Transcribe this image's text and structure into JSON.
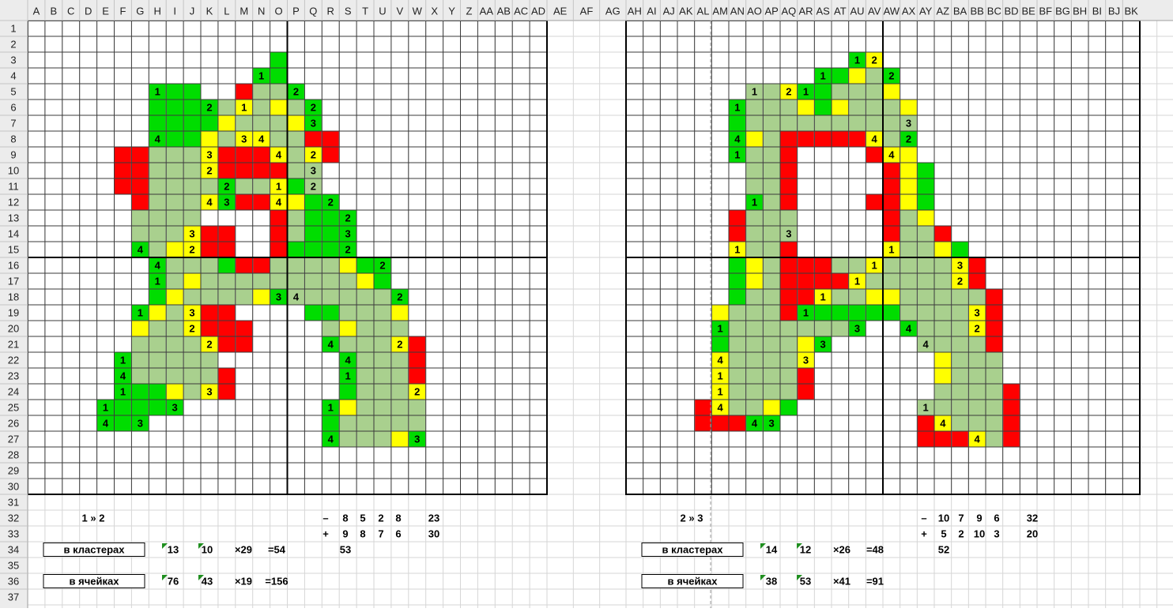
{
  "columns": [
    "A",
    "B",
    "C",
    "D",
    "E",
    "F",
    "G",
    "H",
    "I",
    "J",
    "K",
    "L",
    "M",
    "N",
    "O",
    "P",
    "Q",
    "R",
    "S",
    "T",
    "U",
    "V",
    "W",
    "X",
    "Y",
    "Z",
    "AA",
    "AB",
    "AC",
    "AD",
    "AE",
    "AF",
    "AG",
    "AH",
    "AI",
    "AJ",
    "AK",
    "AL",
    "AM",
    "AN",
    "AO",
    "AP",
    "AQ",
    "AR",
    "AS",
    "AT",
    "AU",
    "AV",
    "AW",
    "AX",
    "AY",
    "AZ",
    "BA",
    "BB",
    "BC",
    "BD",
    "BE",
    "BF",
    "BG",
    "BH",
    "BI",
    "BJ",
    "BK"
  ],
  "rows": [
    1,
    2,
    3,
    4,
    5,
    6,
    7,
    8,
    9,
    10,
    11,
    12,
    13,
    14,
    15,
    16,
    17,
    18,
    19,
    20,
    21,
    22,
    23,
    24,
    25,
    26,
    27,
    28,
    29,
    30,
    31,
    32,
    33,
    34,
    35,
    36,
    37
  ],
  "figures": [
    {
      "cells": {
        "4": {
          "N": 1
        },
        "5": {
          "H": 1,
          "P": 2
        },
        "6": {
          "K": 2,
          "M": 1,
          "Q": 2
        },
        "7": {
          "Q": 3
        },
        "8": {
          "H": 4,
          "M": 3,
          "N": 4
        },
        "9": {
          "K": 3,
          "O": 4,
          "Q": 2
        },
        "10": {
          "K": 2,
          "Q": 3
        },
        "11": {
          "L": 2,
          "O": 1,
          "Q": 2
        },
        "12": {
          "K": 4,
          "L": 3,
          "O": 4,
          "R": 2
        },
        "13": {
          "S": 2
        },
        "14": {
          "J": 3,
          "S": 3
        },
        "15": {
          "G": 4,
          "J": 2,
          "S": 2
        },
        "16": {
          "H": 4,
          "U": 2
        },
        "17": {
          "H": 1
        },
        "18": {
          "O": 3,
          "P": 4,
          "V": 2
        },
        "19": {
          "G": 1,
          "J": 3
        },
        "20": {
          "J": 2
        },
        "21": {
          "K": 2,
          "R": 4,
          "V": 2
        },
        "22": {
          "F": 1,
          "S": 4
        },
        "23": {
          "F": 4,
          "S": 1
        },
        "24": {
          "F": 1,
          "K": 3,
          "W": 2
        },
        "25": {
          "E": 1,
          "I": 3,
          "R": 1
        },
        "26": {
          "E": 4,
          "G": 3
        },
        "27": {
          "R": 4,
          "W": 3
        }
      }
    },
    {
      "cells": {
        "3": {
          "AU": 1,
          "AV": 2
        },
        "4": {
          "AS": 1,
          "AW": 2
        },
        "5": {
          "AO": 1,
          "AQ": 2,
          "AR": 1
        },
        "6": {
          "AN": 1
        },
        "7": {
          "AX": 3
        },
        "8": {
          "AN": 4,
          "AV": 4,
          "AX": 2
        },
        "9": {
          "AN": 1,
          "AW": 4
        },
        "12": {
          "AO": 1
        },
        "14": {
          "AQ": 3
        },
        "15": {
          "AN": 1,
          "AW": 1
        },
        "16": {
          "AV": 1,
          "BA": 3
        },
        "17": {
          "AU": 1,
          "BA": 2
        },
        "18": {
          "AS": 1
        },
        "19": {
          "AR": 1,
          "BB": 3
        },
        "20": {
          "AM": 1,
          "AU": 3,
          "AX": 4,
          "BB": 2
        },
        "21": {
          "AS": 3,
          "AY": 4
        },
        "22": {
          "AM": 4,
          "AR": 3
        },
        "23": {
          "AM": 1
        },
        "24": {
          "AM": 1
        },
        "25": {
          "AM": 4,
          "AY": 1
        },
        "26": {
          "AO": 4,
          "AP": 3,
          "AZ": 4
        },
        "27": {
          "BB": 4
        }
      }
    }
  ],
  "panels": [
    {
      "pair": "1 » 2",
      "minus_sign": "–",
      "minus": [
        8,
        5,
        2,
        8
      ],
      "minus_total": 23,
      "plus_sign": "+",
      "plus": [
        9,
        8,
        7,
        6
      ],
      "plus_total": 30,
      "rows": [
        {
          "label": "в кластерах",
          "a": 13,
          "b": 10,
          "c": "×29",
          "d": "=54",
          "extra": 53
        },
        {
          "label": "в ячейках",
          "a": 76,
          "b": 43,
          "c": "×19",
          "d": "=156"
        }
      ]
    },
    {
      "pair": "2 » 3",
      "minus_sign": "–",
      "minus": [
        10,
        7,
        9,
        6
      ],
      "minus_total": 32,
      "plus_sign": "+",
      "plus": [
        5,
        2,
        10,
        3
      ],
      "plus_total": 20,
      "rows": [
        {
          "label": "в кластерах",
          "a": 14,
          "b": 12,
          "c": "×26",
          "d": "=48",
          "extra": 52
        },
        {
          "label": "в ячейках",
          "a": 38,
          "b": 53,
          "c": "×41",
          "d": "=91"
        }
      ]
    }
  ]
}
